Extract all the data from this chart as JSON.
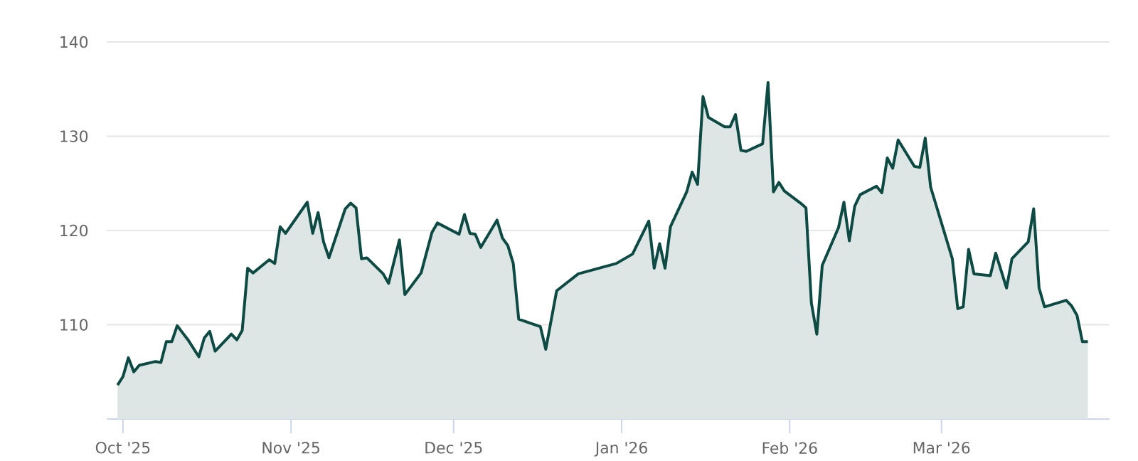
{
  "chart_data": {
    "type": "area",
    "color": "#0d4a43",
    "grid": "y",
    "ylim": [
      100,
      140
    ],
    "yticks": [
      110,
      120,
      130,
      140
    ],
    "xlim": [
      "2025-09-28",
      "2026-04-01"
    ],
    "xticks": [
      {
        "value": "2025-10-01",
        "label": "Oct '25"
      },
      {
        "value": "2025-11-01",
        "label": "Nov '25"
      },
      {
        "value": "2025-12-01",
        "label": "Dec '25"
      },
      {
        "value": "2026-01-01",
        "label": "Jan '26"
      },
      {
        "value": "2026-02-01",
        "label": "Feb '26"
      },
      {
        "value": "2026-03-01",
        "label": "Mar '26"
      }
    ],
    "x": [
      "2025-09-30",
      "2025-10-01",
      "2025-10-02",
      "2025-10-03",
      "2025-10-04",
      "2025-10-07",
      "2025-10-08",
      "2025-10-09",
      "2025-10-10",
      "2025-10-11",
      "2025-10-13",
      "2025-10-15",
      "2025-10-16",
      "2025-10-17",
      "2025-10-18",
      "2025-10-21",
      "2025-10-22",
      "2025-10-23",
      "2025-10-24",
      "2025-10-25",
      "2025-10-28",
      "2025-10-29",
      "2025-10-30",
      "2025-10-31",
      "2025-11-04",
      "2025-11-05",
      "2025-11-06",
      "2025-11-07",
      "2025-11-08",
      "2025-11-11",
      "2025-11-12",
      "2025-11-13",
      "2025-11-14",
      "2025-11-15",
      "2025-11-18",
      "2025-11-19",
      "2025-11-21",
      "2025-11-22",
      "2025-11-25",
      "2025-11-27",
      "2025-11-28",
      "2025-12-02",
      "2025-12-03",
      "2025-12-04",
      "2025-12-05",
      "2025-12-06",
      "2025-12-09",
      "2025-12-10",
      "2025-12-11",
      "2025-12-12",
      "2025-12-13",
      "2025-12-17",
      "2025-12-18",
      "2025-12-20",
      "2025-12-24",
      "2025-12-31",
      "2026-01-03",
      "2026-01-06",
      "2026-01-07",
      "2026-01-08",
      "2026-01-09",
      "2026-01-10",
      "2026-01-13",
      "2026-01-14",
      "2026-01-15",
      "2026-01-16",
      "2026-01-17",
      "2026-01-20",
      "2026-01-21",
      "2026-01-22",
      "2026-01-23",
      "2026-01-24",
      "2026-01-27",
      "2026-01-28",
      "2026-01-29",
      "2026-01-30",
      "2026-01-31",
      "2026-02-03",
      "2026-02-04",
      "2026-02-05",
      "2026-02-06",
      "2026-02-07",
      "2026-02-10",
      "2026-02-11",
      "2026-02-12",
      "2026-02-13",
      "2026-02-14",
      "2026-02-17",
      "2026-02-18",
      "2026-02-19",
      "2026-02-20",
      "2026-02-21",
      "2026-02-24",
      "2026-02-25",
      "2026-02-26",
      "2026-02-27",
      "2026-03-03",
      "2026-03-04",
      "2026-03-05",
      "2026-03-06",
      "2026-03-07",
      "2026-03-10",
      "2026-03-11",
      "2026-03-13",
      "2026-03-14",
      "2026-03-17",
      "2026-03-18",
      "2026-03-19",
      "2026-03-20",
      "2026-03-24",
      "2026-03-25",
      "2026-03-26",
      "2026-03-27",
      "2026-03-28"
    ],
    "values": [
      103.6,
      104.5,
      106.5,
      105.0,
      105.7,
      106.1,
      106.0,
      108.2,
      108.2,
      109.9,
      108.4,
      106.6,
      108.6,
      109.3,
      107.2,
      109.0,
      108.4,
      109.4,
      116.0,
      115.5,
      116.9,
      116.5,
      120.4,
      119.7,
      123.0,
      119.7,
      121.9,
      118.8,
      117.1,
      122.3,
      122.9,
      122.4,
      117.0,
      117.1,
      115.4,
      114.4,
      119.0,
      113.2,
      115.5,
      119.8,
      120.8,
      119.6,
      121.7,
      119.7,
      119.6,
      118.2,
      121.1,
      119.2,
      118.4,
      116.5,
      110.6,
      109.8,
      107.4,
      113.6,
      115.4,
      116.5,
      117.5,
      121.0,
      116.0,
      118.6,
      116.0,
      120.4,
      124.1,
      126.2,
      124.9,
      134.2,
      132.0,
      131.0,
      131.0,
      132.3,
      128.5,
      128.4,
      129.2,
      135.7,
      124.1,
      125.1,
      124.2,
      122.9,
      122.4,
      112.3,
      109.0,
      116.3,
      120.3,
      123.0,
      118.9,
      122.6,
      123.8,
      124.7,
      124.0,
      127.7,
      126.6,
      129.6,
      126.8,
      126.7,
      129.8,
      124.6,
      117.0,
      111.7,
      111.9,
      118.0,
      115.4,
      115.2,
      117.6,
      113.9,
      117.0,
      118.8,
      122.3,
      113.9,
      111.9,
      112.6,
      112.0,
      111.0,
      108.2,
      108.2
    ]
  }
}
